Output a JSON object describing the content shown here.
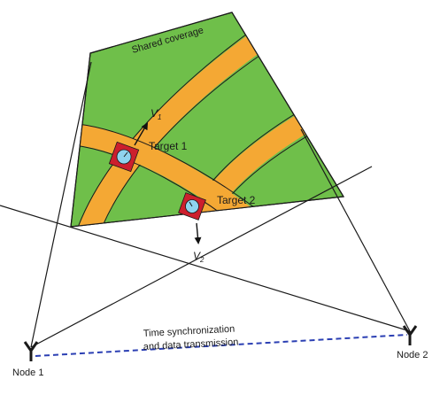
{
  "labels": {
    "shared_coverage": "Shared coverage",
    "v1_main": "V",
    "v1_sub": "1",
    "v2_main": "V",
    "v2_sub": "2",
    "target_1": "Target 1",
    "target_2": "Target 2",
    "link_line_1": "Time synchronization",
    "link_line_2": "and data transmission",
    "node_1": "Node 1",
    "node_2": "Node 2"
  },
  "colors": {
    "coverage_fill": "#6fbf4a",
    "lane_fill": "#f4a834",
    "target_box": "#cc1f2d",
    "target_dot": "#8fd3ee",
    "link_line": "#2b3fb3",
    "outline": "#1a1a1a",
    "velocity_arrow": "#111111"
  },
  "icons": {
    "node_1": "antenna-icon",
    "node_2": "antenna-icon",
    "target_1": "target-icon",
    "target_2": "target-icon"
  }
}
